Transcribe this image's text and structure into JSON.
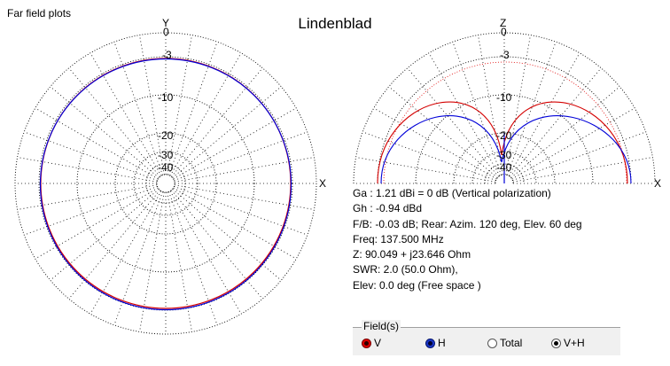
{
  "window": {
    "title": "Far field plots"
  },
  "plot": {
    "title": "Lindenblad",
    "left_axis": {
      "top": "Y",
      "right": "X"
    },
    "right_axis": {
      "top": "Z",
      "right": "X"
    },
    "db_ring_labels": [
      "0",
      "-3",
      "-10",
      "-20",
      "-30",
      "-40"
    ]
  },
  "info": {
    "ga": "Ga : 1.21 dBi = 0 dB  (Vertical polarization)",
    "gh": "Gh : -0.94 dBd",
    "fb": "F/B: -0.03 dB; Rear: Azim. 120 deg,  Elev. 60 deg",
    "freq": "Freq: 137.500 MHz",
    "z": "Z: 90.049 + j23.646 Ohm",
    "swr": "SWR: 2.0 (50.0 Ohm),",
    "elev": "Elev: 0.0 deg (Free space )"
  },
  "fields": {
    "legend": "Field(s)",
    "options": [
      {
        "label": "V",
        "selected": true,
        "color": "#e00000"
      },
      {
        "label": "H",
        "selected": true,
        "color": "#1a36c8"
      },
      {
        "label": "Total",
        "selected": false,
        "color": "#000000"
      },
      {
        "label": "V+H",
        "selected": true,
        "color": "#000000"
      }
    ]
  },
  "colors": {
    "vertical": "#e00000",
    "horizontal": "#0000e0",
    "grid": "#000000",
    "reference": "#e00000"
  }
}
